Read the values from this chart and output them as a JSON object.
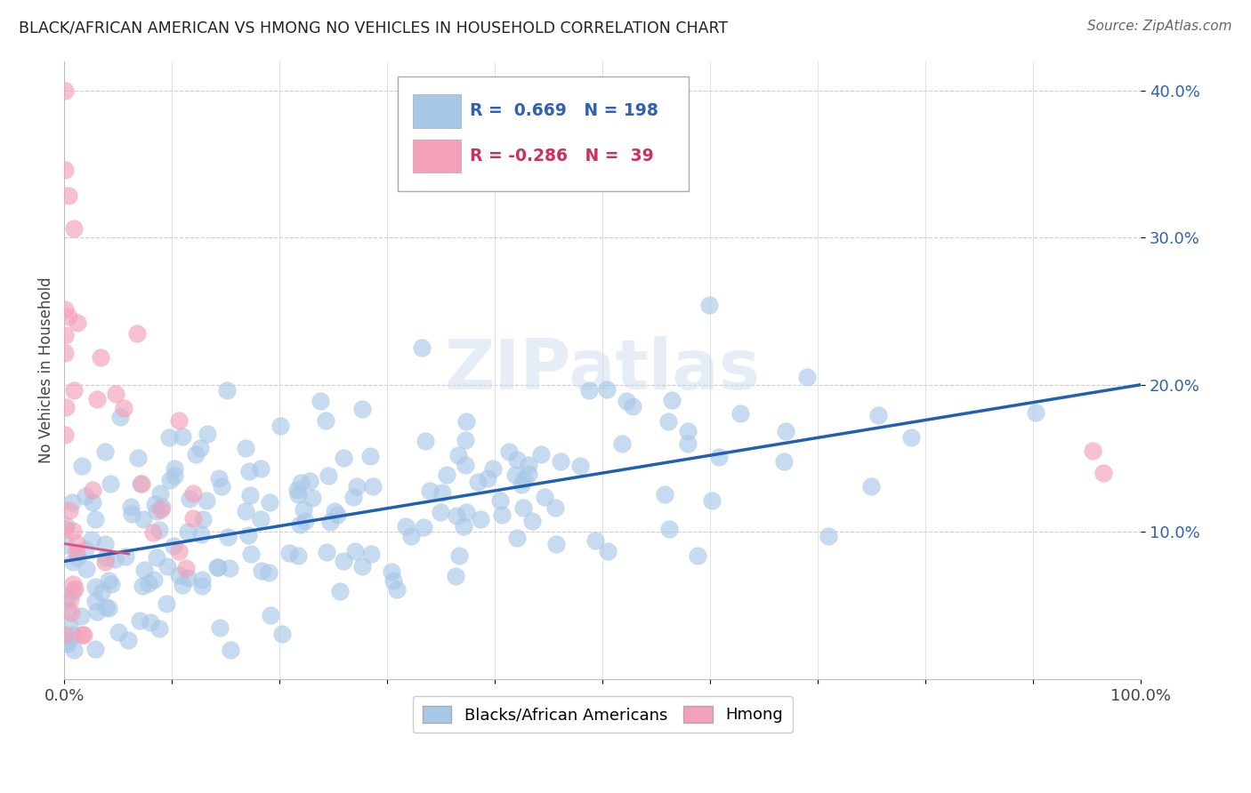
{
  "title": "BLACK/AFRICAN AMERICAN VS HMONG NO VEHICLES IN HOUSEHOLD CORRELATION CHART",
  "source": "Source: ZipAtlas.com",
  "ylabel": "No Vehicles in Household",
  "legend1_r": "0.669",
  "legend1_n": "198",
  "legend2_r": "-0.286",
  "legend2_n": "39",
  "blue_color": "#a8c8e8",
  "pink_color": "#f4a0b8",
  "blue_line_color": "#2060b0",
  "pink_line_color": "#e05080",
  "watermark": "ZIPatlas",
  "background_color": "#ffffff",
  "blue_line_x0": 0.0,
  "blue_line_y0": 0.08,
  "blue_line_x1": 1.0,
  "blue_line_y1": 0.2,
  "pink_line_x0": 0.0,
  "pink_line_y0": 0.092,
  "pink_line_x1": 0.06,
  "pink_line_y1": 0.085,
  "xlim": [
    0.0,
    1.0
  ],
  "ylim": [
    0.0,
    0.42
  ],
  "seed": 42
}
